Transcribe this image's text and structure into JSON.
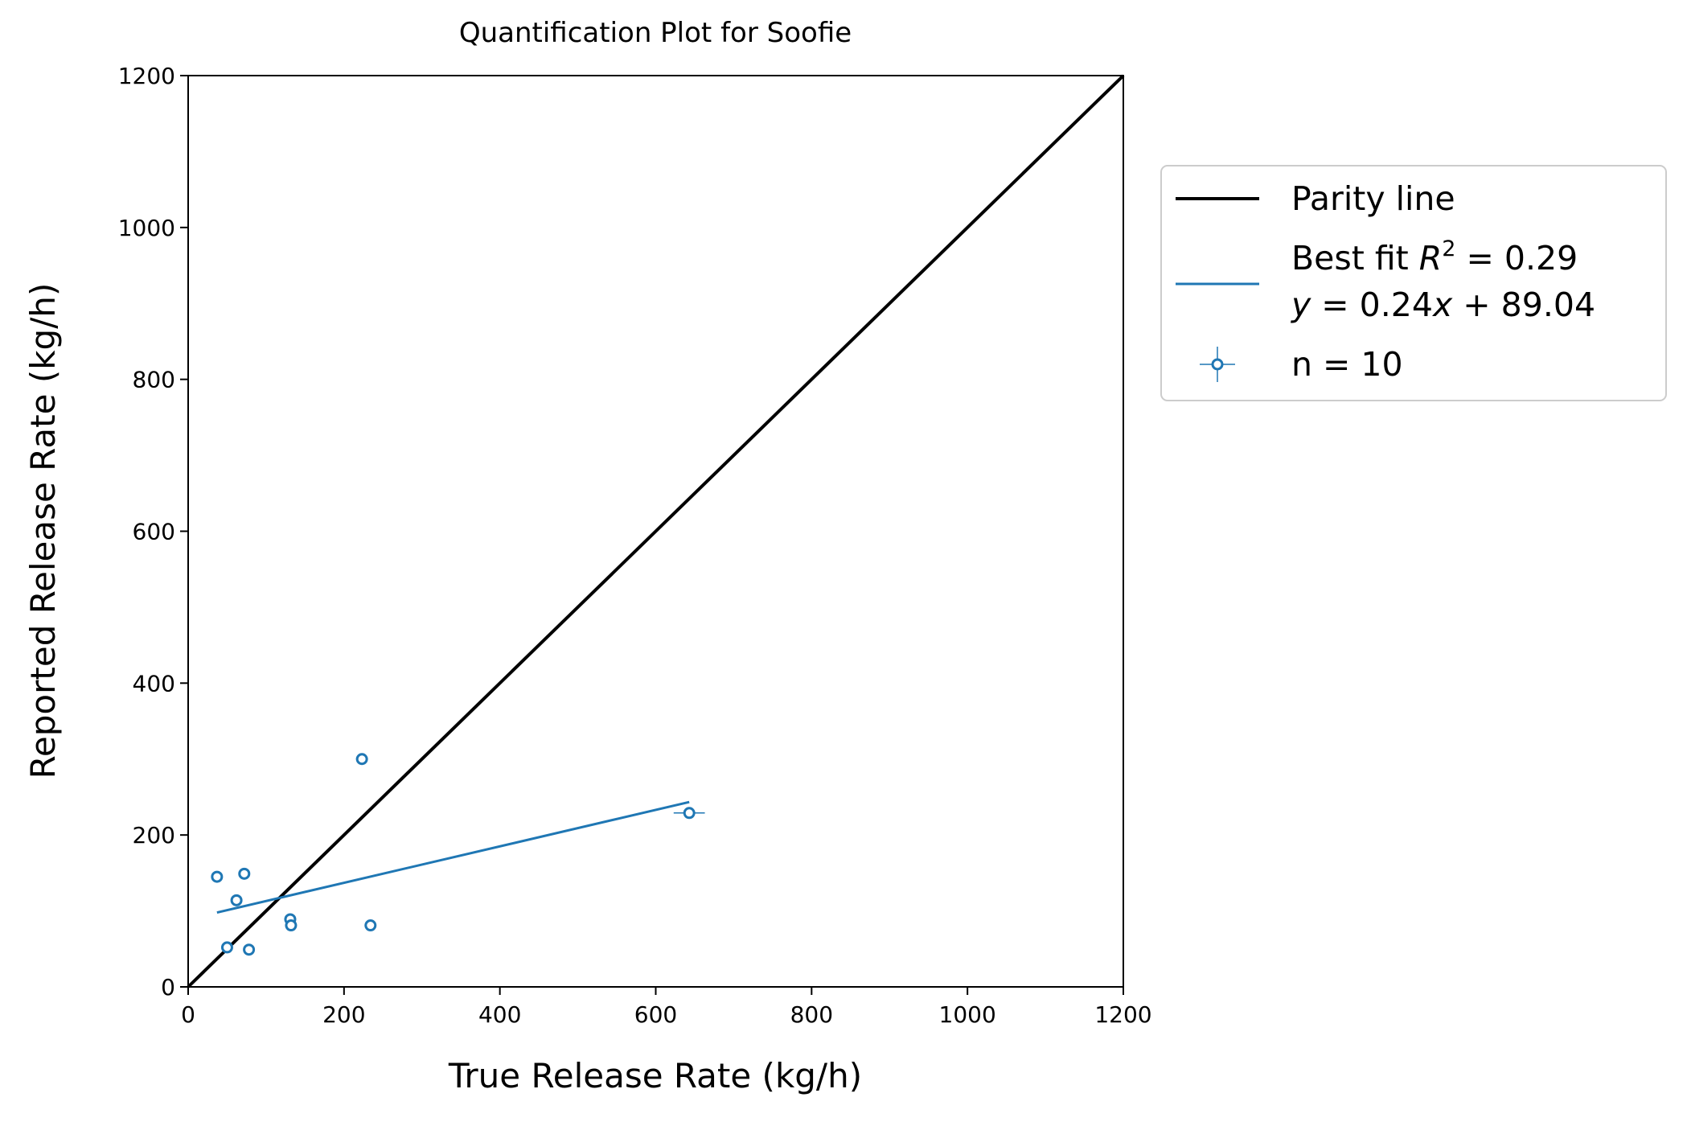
{
  "chart_data": {
    "type": "scatter",
    "title": "Quantification Plot for Soofie",
    "xlabel": "True Release Rate (kg/h)",
    "ylabel": "Reported Release Rate (kg/h)",
    "xlim": [
      0,
      1200
    ],
    "ylim": [
      0,
      1200
    ],
    "xticks": [
      "0",
      "200",
      "400",
      "600",
      "800",
      "1000",
      "1200"
    ],
    "yticks": [
      "0",
      "200",
      "400",
      "600",
      "800",
      "1000",
      "1200"
    ],
    "grid": false,
    "legend_position": "outside-right",
    "series": [
      {
        "name": "Parity line",
        "kind": "line",
        "color": "#000000",
        "x": [
          0,
          1200
        ],
        "y": [
          0,
          1200
        ]
      },
      {
        "name": "Best fit",
        "kind": "line",
        "color": "#1f77b4",
        "r2": "0.29",
        "equation": "y = 0.24x + 89.04",
        "x": [
          37,
          643
        ],
        "y": [
          97.9,
          243.4
        ]
      },
      {
        "name": "n = 10",
        "kind": "scatter",
        "color": "#1f77b4",
        "marker": "open-circle",
        "points": [
          {
            "x": 37,
            "y": 145
          },
          {
            "x": 50,
            "y": 52
          },
          {
            "x": 62,
            "y": 114
          },
          {
            "x": 72,
            "y": 149
          },
          {
            "x": 78,
            "y": 49
          },
          {
            "x": 131,
            "y": 89
          },
          {
            "x": 132,
            "y": 81
          },
          {
            "x": 223,
            "y": 300
          },
          {
            "x": 234,
            "y": 81
          },
          {
            "x": 643,
            "y": 229,
            "xerr": 20
          }
        ]
      }
    ],
    "legend": {
      "parity_label": "Parity line",
      "fit_label_prefix": "Best fit ",
      "fit_r_symbol": "R",
      "fit_r_exp": "2",
      "fit_r_value": " = 0.29",
      "fit_eq_y": "y",
      "fit_eq_mid": " = 0.24",
      "fit_eq_x": "x",
      "fit_eq_end": " + 89.04",
      "points_label": "n = 10"
    }
  }
}
